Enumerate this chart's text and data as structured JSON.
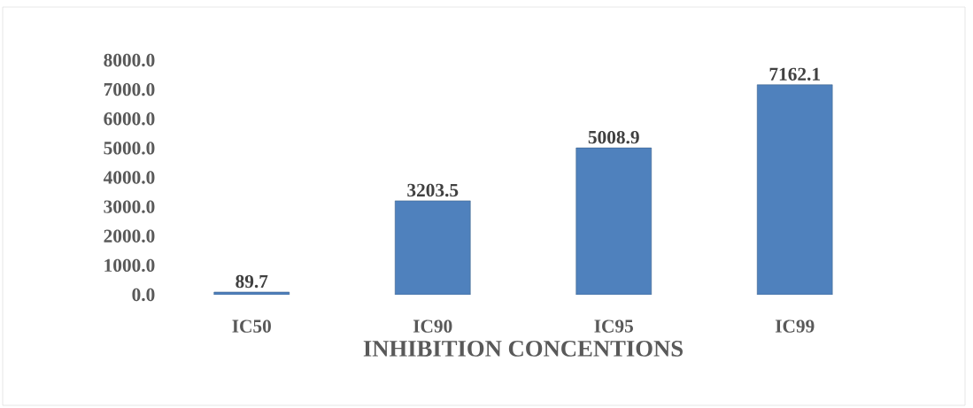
{
  "chart_data": {
    "type": "bar",
    "xlabel": "INHIBITION CONCENTIONS",
    "categories": [
      "IC50",
      "IC90",
      "IC95",
      "IC99"
    ],
    "values": [
      89.7,
      3203.5,
      5008.9,
      7162.1
    ],
    "color": "#4f81bd",
    "ylim": [
      0,
      8000
    ],
    "yticks": [
      {
        "value": 0,
        "label": "0.0"
      },
      {
        "value": 1000,
        "label": "1000.0"
      },
      {
        "value": 2000,
        "label": "2000.0"
      },
      {
        "value": 3000,
        "label": "3000.0"
      },
      {
        "value": 4000,
        "label": "4000.0"
      },
      {
        "value": 5000,
        "label": "5000.0"
      },
      {
        "value": 6000,
        "label": "6000.0"
      },
      {
        "value": 7000,
        "label": "7000.0"
      },
      {
        "value": 8000,
        "label": "8000.0"
      }
    ],
    "data_labels": true,
    "grid": false
  }
}
